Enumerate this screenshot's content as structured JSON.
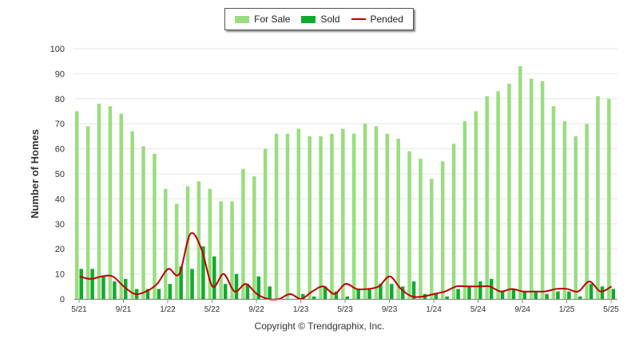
{
  "colors": {
    "for_sale": "#99dd7f",
    "sold": "#11aa2e",
    "pended": "#c00000",
    "grid": "#e6e6e6"
  },
  "legend": {
    "for_sale": "For Sale",
    "sold": "Sold",
    "pended": "Pended"
  },
  "copyright": "Copyright © Trendgraphix, Inc.",
  "chart_data": {
    "type": "bar",
    "ylabel": "Number of Homes",
    "xlabel": "",
    "ylim": [
      0,
      100
    ],
    "y_ticks": [
      0,
      10,
      20,
      30,
      40,
      50,
      60,
      70,
      80,
      90,
      100
    ],
    "grid": true,
    "legend_position": "top-center",
    "categories": [
      "5/21",
      "6/21",
      "7/21",
      "8/21",
      "9/21",
      "10/21",
      "11/21",
      "12/21",
      "1/22",
      "2/22",
      "3/22",
      "4/22",
      "5/22",
      "6/22",
      "7/22",
      "8/22",
      "9/22",
      "10/22",
      "11/22",
      "12/22",
      "1/23",
      "2/23",
      "3/23",
      "4/23",
      "5/23",
      "6/23",
      "7/23",
      "8/23",
      "9/23",
      "10/23",
      "11/23",
      "12/23",
      "1/24",
      "2/24",
      "3/24",
      "4/24",
      "5/24",
      "6/24",
      "7/24",
      "8/24",
      "9/24",
      "10/24",
      "11/24",
      "12/24",
      "1/25",
      "2/25",
      "3/25",
      "4/25",
      "5/25"
    ],
    "tick_labels": [
      "5/21",
      "9/21",
      "1/22",
      "5/22",
      "9/22",
      "1/23",
      "5/23",
      "9/23",
      "1/24",
      "5/24",
      "9/24",
      "1/25",
      "5/25"
    ],
    "series": [
      {
        "name": "For Sale",
        "type": "bar",
        "values": [
          75,
          69,
          78,
          77,
          74,
          67,
          61,
          58,
          44,
          38,
          45,
          47,
          44,
          39,
          39,
          52,
          49,
          60,
          66,
          66,
          68,
          65,
          65,
          66,
          68,
          66,
          70,
          69,
          66,
          64,
          59,
          56,
          48,
          55,
          62,
          71,
          75,
          81,
          83,
          86,
          93,
          88,
          87,
          77,
          71,
          65,
          70,
          81,
          80
        ]
      },
      {
        "name": "Sold",
        "type": "bar",
        "values": [
          12,
          12,
          9,
          7,
          8,
          4,
          4,
          4,
          6,
          13,
          12,
          21,
          17,
          6,
          10,
          6,
          9,
          5,
          0,
          0,
          2,
          1,
          5,
          3,
          1,
          4,
          4,
          6,
          6,
          5,
          7,
          2,
          2,
          1,
          4,
          5,
          7,
          8,
          3,
          4,
          3,
          3,
          2,
          3,
          3,
          1,
          6,
          5,
          4
        ]
      },
      {
        "name": "Pended",
        "type": "line",
        "values": [
          9,
          8,
          9,
          9,
          5,
          2,
          3,
          6,
          12,
          10,
          26,
          20,
          5,
          10,
          3,
          6,
          2,
          0,
          0,
          2,
          0,
          3,
          5,
          2,
          6,
          4,
          4,
          5,
          9,
          4,
          1,
          1,
          2,
          3,
          5,
          5,
          5,
          5,
          3,
          4,
          3,
          3,
          3,
          4,
          4,
          3,
          7,
          3,
          5
        ]
      }
    ]
  }
}
